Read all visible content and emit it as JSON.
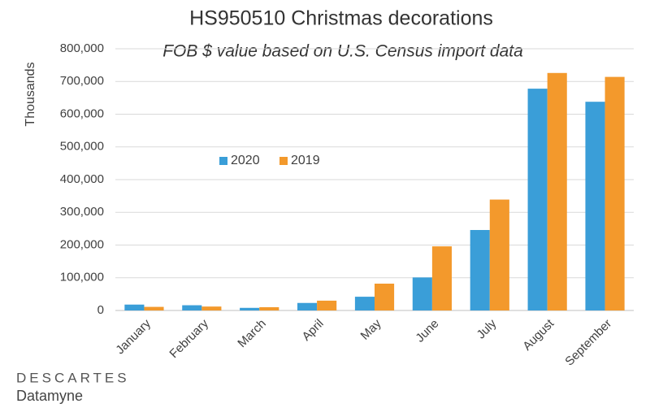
{
  "chart_data": {
    "type": "bar",
    "title": "HS950510 Christmas decorations",
    "subtitle": "FOB $ value based on U.S. Census import data",
    "y_label": "Thousands",
    "categories": [
      "January",
      "February",
      "March",
      "April",
      "May",
      "June",
      "July",
      "August",
      "September"
    ],
    "series": [
      {
        "name": "2020",
        "color": "#3a9ed8",
        "values": [
          18000,
          16000,
          8000,
          23000,
          42000,
          101000,
          246000,
          678000,
          638000
        ]
      },
      {
        "name": "2019",
        "color": "#f3992c",
        "values": [
          11000,
          12000,
          10000,
          30000,
          82000,
          196000,
          339000,
          726000,
          714000
        ]
      }
    ],
    "ylim": [
      0,
      800000
    ],
    "yticks": [
      0,
      {
        "value": 100000,
        "label": "100,000"
      },
      {
        "value": 200000,
        "label": "200,000"
      },
      {
        "value": 300000,
        "label": "300,000"
      },
      {
        "value": 400000,
        "label": "400,000"
      },
      {
        "value": 500000,
        "label": "500,000"
      },
      {
        "value": 600000,
        "label": "600,000"
      },
      {
        "value": 700000,
        "label": "700,000"
      },
      {
        "value": 800000,
        "label": "800,000"
      }
    ],
    "grid": true
  },
  "branding": {
    "name": "DESCARTES",
    "product": "Datamyne"
  }
}
